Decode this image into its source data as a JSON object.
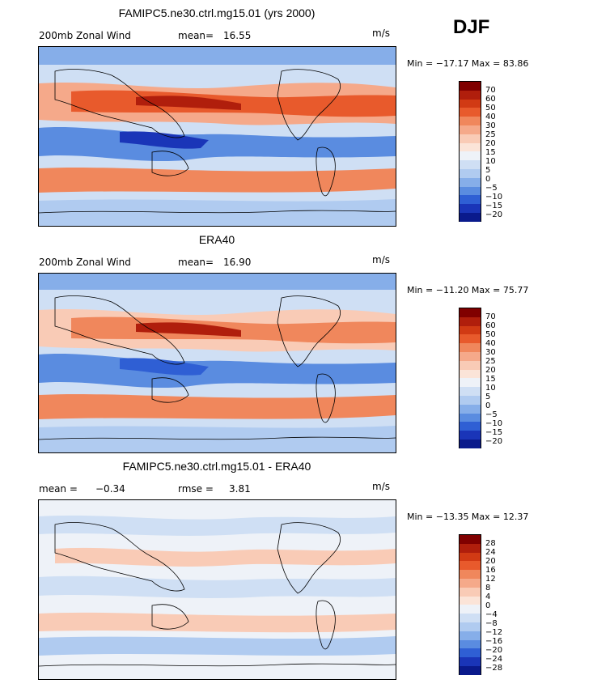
{
  "season": "DJF",
  "units": "m/s",
  "panels": [
    {
      "title": "FAMIPC5.ne30.ctrl.mg15.01 (yrs 2000)",
      "left_label": "200mb Zonal Wind",
      "stat1_label": "mean=",
      "stat1_value": "16.55",
      "stat2_label": "",
      "stat2_value": "",
      "units": "m/s",
      "min_label": "Min = −17.17 Max = 83.86",
      "min": -17.17,
      "max": 83.86,
      "levels": [
        "70",
        "60",
        "50",
        "40",
        "30",
        "25",
        "20",
        "15",
        "10",
        "5",
        "0",
        "−5",
        "−10",
        "−15",
        "−20"
      ]
    },
    {
      "title": "ERA40",
      "left_label": "200mb Zonal Wind",
      "stat1_label": "mean=",
      "stat1_value": "16.90",
      "stat2_label": "",
      "stat2_value": "",
      "units": "m/s",
      "min_label": "Min = −11.20 Max = 75.77",
      "min": -11.2,
      "max": 75.77,
      "levels": [
        "70",
        "60",
        "50",
        "40",
        "30",
        "25",
        "20",
        "15",
        "10",
        "5",
        "0",
        "−5",
        "−10",
        "−15",
        "−20"
      ]
    },
    {
      "title": "FAMIPC5.ne30.ctrl.mg15.01 - ERA40",
      "left_label": "mean =",
      "stat1_label": "−0.34",
      "stat1_value": "",
      "stat2_label": "rmse =",
      "stat2_value": "3.81",
      "units": "m/s",
      "min_label": "Min = −13.35 Max = 12.37",
      "min": -13.35,
      "max": 12.37,
      "levels": [
        "28",
        "24",
        "20",
        "16",
        "12",
        "8",
        "4",
        "0",
        "−4",
        "−8",
        "−12",
        "−16",
        "−20",
        "−24",
        "−28"
      ]
    }
  ],
  "colors": {
    "scale": [
      "#800000",
      "#b01e0c",
      "#d13a14",
      "#e85a2c",
      "#f0875c",
      "#f5a98a",
      "#f9cbb6",
      "#fbe4d8",
      "#eef2f8",
      "#cfdff4",
      "#b0cbf0",
      "#86aee9",
      "#5a8ce0",
      "#2f5fd4",
      "#1a35b8",
      "#0a1a8c"
    ],
    "land": "#000000"
  }
}
